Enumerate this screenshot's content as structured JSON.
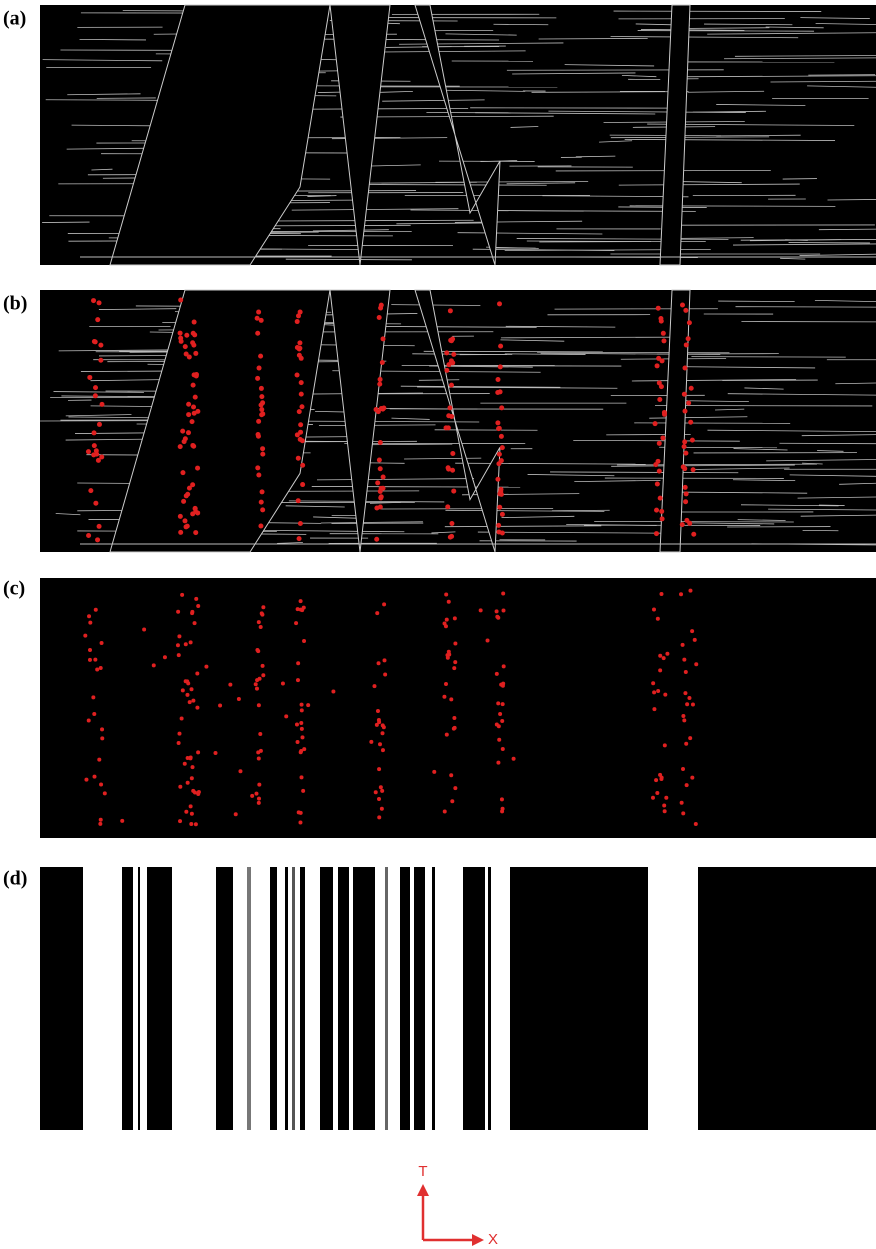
{
  "panels": [
    {
      "label": "(a)"
    },
    {
      "label": "(b)"
    },
    {
      "label": "(c)"
    },
    {
      "label": "(d)"
    }
  ],
  "axes": {
    "vertical": "T",
    "horizontal": "X"
  }
}
